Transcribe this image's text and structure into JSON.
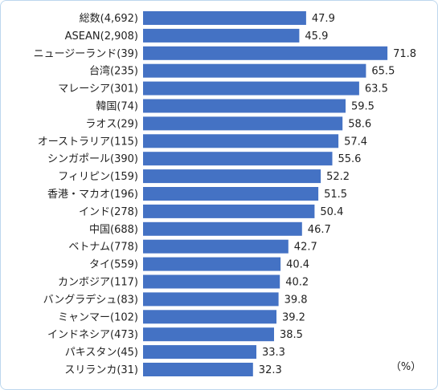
{
  "chart_data": {
    "type": "bar",
    "orientation": "horizontal",
    "categories": [
      "総数(4,692)",
      "ASEAN(2,908)",
      "ニュージーランド(39)",
      "台湾(235)",
      "マレーシア(301)",
      "韓国(74)",
      "ラオス(29)",
      "オーストラリア(115)",
      "シンガポール(390)",
      "フィリピン(159)",
      "香港・マカオ(196)",
      "インド(278)",
      "中国(688)",
      "ベトナム(778)",
      "タイ(559)",
      "カンボジア(117)",
      "バングラデシュ(83)",
      "ミャンマー(102)",
      "インドネシア(473)",
      "パキスタン(45)",
      "スリランカ(31)"
    ],
    "values": [
      47.9,
      45.9,
      71.8,
      65.5,
      63.5,
      59.5,
      58.6,
      57.4,
      55.6,
      52.2,
      51.5,
      50.4,
      46.7,
      42.7,
      40.4,
      40.2,
      39.8,
      39.2,
      38.5,
      33.3,
      32.3
    ],
    "value_labels": [
      "47.9",
      "45.9",
      "71.8",
      "65.5",
      "63.5",
      "59.5",
      "58.6",
      "57.4",
      "55.6",
      "52.2",
      "51.5",
      "50.4",
      "46.7",
      "42.7",
      "40.4",
      "40.2",
      "39.8",
      "39.2",
      "38.5",
      "33.3",
      "32.3"
    ],
    "unit": "（%）",
    "xlim": [
      0,
      80
    ],
    "grid": false,
    "bar_color": "#4472c4"
  }
}
